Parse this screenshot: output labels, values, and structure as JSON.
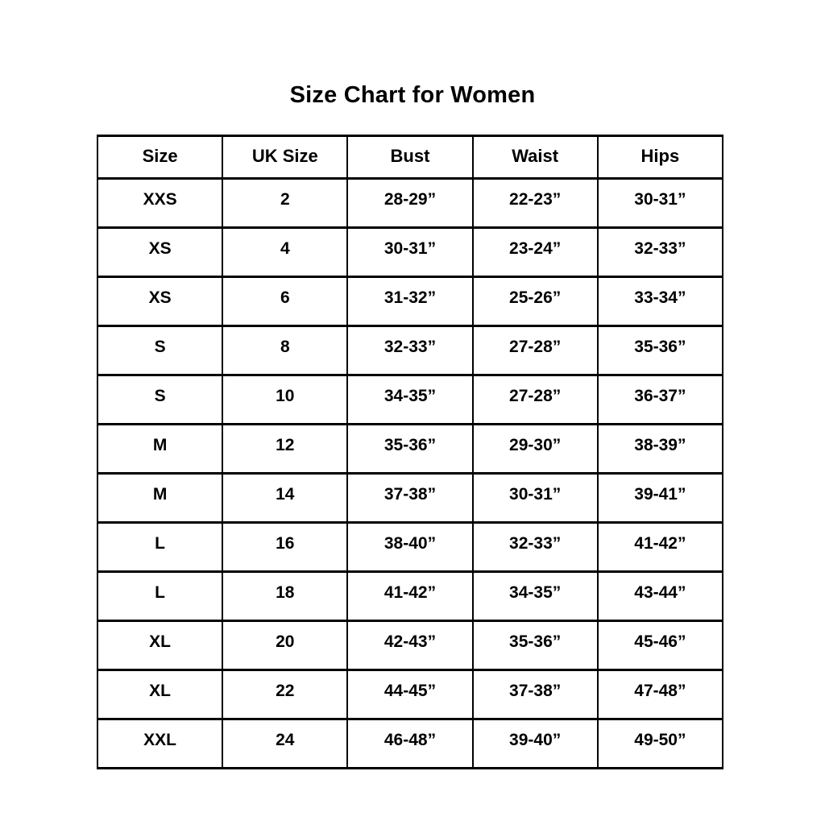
{
  "chart_data": {
    "type": "table",
    "title": "Size Chart for Women",
    "columns": [
      "Size",
      "UK Size",
      "Bust",
      "Waist",
      "Hips"
    ],
    "rows": [
      [
        "XXS",
        "2",
        "28-29”",
        "22-23”",
        "30-31”"
      ],
      [
        "XS",
        "4",
        "30-31”",
        "23-24”",
        "32-33”"
      ],
      [
        "XS",
        "6",
        "31-32”",
        "25-26”",
        "33-34”"
      ],
      [
        "S",
        "8",
        "32-33”",
        "27-28”",
        "35-36”"
      ],
      [
        "S",
        "10",
        "34-35”",
        "27-28”",
        "36-37”"
      ],
      [
        "M",
        "12",
        "35-36”",
        "29-30”",
        "38-39”"
      ],
      [
        "M",
        "14",
        "37-38”",
        "30-31”",
        "39-41”"
      ],
      [
        "L",
        "16",
        "38-40”",
        "32-33”",
        "41-42”"
      ],
      [
        "L",
        "18",
        "41-42”",
        "34-35”",
        "43-44”"
      ],
      [
        "XL",
        "20",
        "42-43”",
        "35-36”",
        "45-46”"
      ],
      [
        "XL",
        "22",
        "44-45”",
        "37-38”",
        "47-48”"
      ],
      [
        "XXL",
        "24",
        "46-48”",
        "39-40”",
        "49-50”"
      ]
    ],
    "layout": {
      "grid": "on",
      "header_row": true,
      "columns_equal_width": true
    }
  },
  "colors": {
    "text": "#000000",
    "border": "#000000",
    "background": "#ffffff"
  }
}
